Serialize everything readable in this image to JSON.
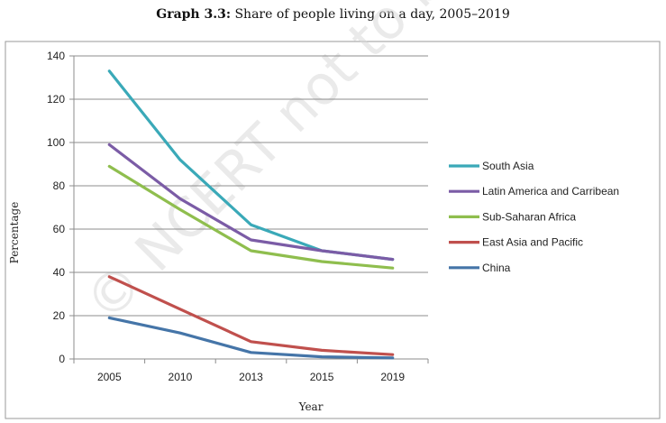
{
  "title": {
    "lead": "Graph 3.3:",
    "text": "Share of people living on a day, 2005–2019"
  },
  "watermark": "© NCERT not to be republished",
  "chart_data": {
    "type": "line",
    "categories": [
      "2005",
      "2010",
      "2013",
      "2015",
      "2019"
    ],
    "xlabel": "Year",
    "ylabel": "Percentage",
    "ylim": [
      0,
      140
    ],
    "yticks": [
      0,
      20,
      40,
      60,
      80,
      100,
      120,
      140
    ],
    "grid": "horizontal",
    "legend_position": "right",
    "series": [
      {
        "name": "South Asia",
        "color": "#3aa9b8",
        "values": [
          133,
          92,
          62,
          50,
          46
        ]
      },
      {
        "name": "Latin America and Carribean",
        "color": "#7b5ca6",
        "values": [
          99,
          74,
          55,
          50,
          46
        ]
      },
      {
        "name": "Sub-Saharan Africa",
        "color": "#8fbe4e",
        "values": [
          89,
          69,
          50,
          45,
          42
        ]
      },
      {
        "name": "East Asia and Pacific",
        "color": "#c0504d",
        "values": [
          38,
          23,
          8,
          4,
          2
        ]
      },
      {
        "name": "China",
        "color": "#4575a8",
        "values": [
          19,
          12,
          3,
          1,
          0.5
        ]
      }
    ]
  }
}
